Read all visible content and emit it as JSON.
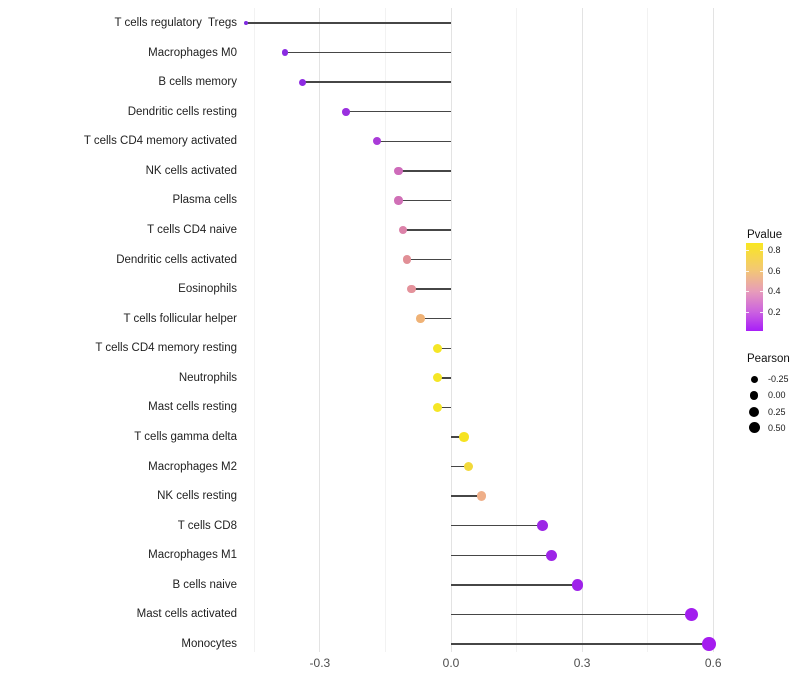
{
  "chart_data": {
    "type": "scatter",
    "style": "horizontal-lollipop",
    "title": "",
    "xlabel": "",
    "ylabel": "",
    "xlim": [
      -0.5,
      0.63
    ],
    "grid": "vertical-only",
    "x_ticks": [
      {
        "label": "-0.3",
        "value": -0.3
      },
      {
        "label": "0.0",
        "value": 0.0
      },
      {
        "label": "0.3",
        "value": 0.3
      },
      {
        "label": "0.6",
        "value": 0.6
      }
    ],
    "x_minor_gridlines": [
      -0.45,
      -0.15,
      0.15,
      0.45
    ],
    "points": [
      {
        "label": "T cells regulatory  Tregs",
        "pearson": -0.47,
        "dot_color": "#7f2be0",
        "dot_size": 4
      },
      {
        "label": "Macrophages M0",
        "pearson": -0.38,
        "dot_color": "#8a2be2",
        "dot_size": 6.5
      },
      {
        "label": "B cells memory",
        "pearson": -0.34,
        "dot_color": "#8e2be2",
        "dot_size": 7
      },
      {
        "label": "Dendritic cells resting",
        "pearson": -0.24,
        "dot_color": "#9a30df",
        "dot_size": 7.6
      },
      {
        "label": "T cells CD4 memory activated",
        "pearson": -0.17,
        "dot_color": "#a93bd8",
        "dot_size": 8
      },
      {
        "label": "NK cells activated",
        "pearson": -0.12,
        "dot_color": "#ce6bba",
        "dot_size": 8.2
      },
      {
        "label": "Plasma cells",
        "pearson": -0.12,
        "dot_color": "#d06fb6",
        "dot_size": 8.2
      },
      {
        "label": "T cells CD4 naive",
        "pearson": -0.11,
        "dot_color": "#dc82a9",
        "dot_size": 8.3
      },
      {
        "label": "Dendritic cells activated",
        "pearson": -0.1,
        "dot_color": "#e18f96",
        "dot_size": 8.4
      },
      {
        "label": "Eosinophils",
        "pearson": -0.09,
        "dot_color": "#e4929b",
        "dot_size": 8.4
      },
      {
        "label": "T cells follicular helper",
        "pearson": -0.07,
        "dot_color": "#efb276",
        "dot_size": 8.6
      },
      {
        "label": "T cells CD4 memory resting",
        "pearson": -0.03,
        "dot_color": "#f5e626",
        "dot_size": 9
      },
      {
        "label": "Neutrophils",
        "pearson": -0.03,
        "dot_color": "#f5e626",
        "dot_size": 9
      },
      {
        "label": "Mast cells resting",
        "pearson": -0.03,
        "dot_color": "#f5e626",
        "dot_size": 9
      },
      {
        "label": "T cells gamma delta",
        "pearson": 0.03,
        "dot_color": "#f6e321",
        "dot_size": 9.4
      },
      {
        "label": "Macrophages M2",
        "pearson": 0.04,
        "dot_color": "#f2d93b",
        "dot_size": 9.5
      },
      {
        "label": "NK cells resting",
        "pearson": 0.07,
        "dot_color": "#efaf89",
        "dot_size": 9.8
      },
      {
        "label": "T cells CD8",
        "pearson": 0.21,
        "dot_color": "#9c27e6",
        "dot_size": 10.8
      },
      {
        "label": "Macrophages M1",
        "pearson": 0.23,
        "dot_color": "#9d25e7",
        "dot_size": 11
      },
      {
        "label": "B cells naive",
        "pearson": 0.29,
        "dot_color": "#9f22ea",
        "dot_size": 11.5
      },
      {
        "label": "Mast cells activated",
        "pearson": 0.55,
        "dot_color": "#a21eee",
        "dot_size": 13.4
      },
      {
        "label": "Monocytes",
        "pearson": 0.59,
        "dot_color": "#a51cef",
        "dot_size": 13.7
      }
    ],
    "legend_position": "right"
  },
  "legend": {
    "pvalue": {
      "title": "Pvalue",
      "gradient_top_to_bottom": [
        "#f9e721",
        "#f3c873",
        "#e79cba",
        "#cc63df",
        "#a81ef8"
      ],
      "ticks": [
        {
          "label": "0.8",
          "offset": 7
        },
        {
          "label": "0.6",
          "offset": 28
        },
        {
          "label": "0.4",
          "offset": 48
        },
        {
          "label": "0.2",
          "offset": 69
        }
      ]
    },
    "pearson": {
      "title": "Pearson",
      "items": [
        {
          "label": "-0.25",
          "size": 7
        },
        {
          "label": "0.00",
          "size": 8.8
        },
        {
          "label": "0.25",
          "size": 10
        },
        {
          "label": "0.50",
          "size": 11
        }
      ]
    }
  }
}
